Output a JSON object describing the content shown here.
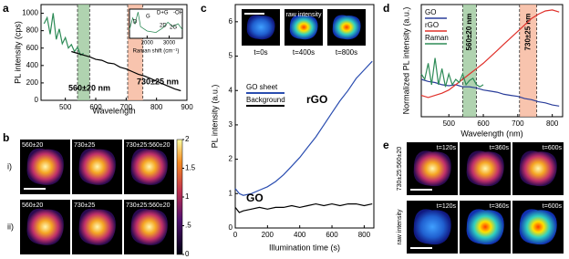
{
  "panel_labels": [
    "a",
    "b",
    "c",
    "d",
    "e"
  ],
  "chart_data": [
    {
      "type": "line",
      "y_label": "PL intensity (cps)",
      "x_label": "Wavelength",
      "xlim": [
        420,
        900
      ],
      "ylim": [
        0,
        1100
      ],
      "xticks": [
        500,
        600,
        700,
        800,
        900
      ],
      "yticks": [
        0,
        200,
        400,
        600,
        800,
        1000
      ],
      "bands": [
        {
          "range": [
            540,
            580
          ],
          "color": "#9cc89c",
          "label": "560±20 nm",
          "label_color": "#2e9a3a"
        },
        {
          "range": [
            705,
            755
          ],
          "color": "#f6b59a",
          "label": "730±25 nm",
          "label_color": "#d9443a"
        }
      ],
      "series": [
        {
          "color": "#2e8b57",
          "x": [
            430,
            440,
            450,
            460,
            470,
            480,
            490,
            500,
            510,
            520,
            530,
            540,
            550,
            560
          ],
          "values": [
            880,
            950,
            760,
            1000,
            700,
            820,
            650,
            720,
            600,
            640,
            560,
            610,
            520,
            540
          ]
        },
        {
          "color": "#000000",
          "x": [
            520,
            540,
            560,
            580,
            600,
            620,
            640,
            660,
            680,
            700,
            720,
            740,
            760,
            780,
            800,
            820,
            840,
            860,
            880
          ],
          "values": [
            560,
            540,
            520,
            500,
            470,
            460,
            430,
            420,
            380,
            360,
            330,
            300,
            280,
            250,
            220,
            190,
            160,
            130,
            110
          ]
        }
      ]
    },
    {
      "type": "line",
      "x_label": "Raman shift (cm⁻¹)",
      "xlim": [
        1200,
        3600
      ],
      "ylim": [
        0,
        1
      ],
      "xticks": [
        2000,
        3000
      ],
      "peak_labels": [
        "D",
        "G",
        "D+G",
        "-OH",
        "2D",
        "2G"
      ],
      "series": [
        {
          "color": "#2e8b57",
          "x": [
            1200,
            1350,
            1450,
            1590,
            1700,
            2000,
            2400,
            2700,
            2940,
            3180,
            3400,
            3600
          ],
          "values": [
            0.3,
            0.7,
            0.5,
            0.9,
            0.4,
            0.25,
            0.2,
            0.35,
            0.55,
            0.4,
            0.5,
            0.3
          ]
        }
      ]
    },
    {
      "type": "line",
      "x_label": "Illumination time (s)",
      "y_label": "PL intensity (a.u.)",
      "xlim": [
        0,
        860
      ],
      "ylim": [
        0,
        6.5
      ],
      "xticks": [
        0,
        200,
        400,
        600,
        800
      ],
      "yticks": [
        0,
        1,
        2,
        3,
        4,
        5,
        6
      ],
      "annotations": [
        {
          "text": "GO",
          "color": "#2e9a2e"
        },
        {
          "text": "rGO",
          "color": "#f0a000"
        }
      ],
      "images": {
        "label": "raw intensity",
        "times": [
          "t=0s",
          "t=400s",
          "t=800s"
        ]
      },
      "series": [
        {
          "name": "GO sheet",
          "color": "#2a4db0",
          "x": [
            0,
            25,
            50,
            100,
            150,
            200,
            250,
            300,
            350,
            400,
            450,
            500,
            550,
            600,
            650,
            700,
            750,
            800,
            850
          ],
          "values": [
            1.15,
            1.0,
            0.95,
            1.0,
            1.1,
            1.2,
            1.35,
            1.55,
            1.8,
            2.05,
            2.35,
            2.65,
            3.0,
            3.35,
            3.7,
            4.0,
            4.35,
            4.6,
            4.85
          ]
        },
        {
          "name": "Background",
          "color": "#000000",
          "x": [
            0,
            25,
            50,
            100,
            150,
            200,
            250,
            300,
            350,
            400,
            450,
            500,
            550,
            600,
            650,
            700,
            750,
            800,
            850
          ],
          "values": [
            0.6,
            0.45,
            0.5,
            0.55,
            0.6,
            0.55,
            0.6,
            0.6,
            0.65,
            0.6,
            0.65,
            0.7,
            0.65,
            0.7,
            0.65,
            0.7,
            0.7,
            0.65,
            0.7
          ]
        }
      ]
    },
    {
      "type": "line",
      "x_label": "Wavelength (nm)",
      "y_label": "Normalized PL intensity (a.u.)",
      "xlim": [
        420,
        830
      ],
      "ylim": [
        0,
        1.05
      ],
      "xticks": [
        500,
        600,
        700,
        800
      ],
      "bands": [
        {
          "range": [
            540,
            580
          ],
          "color": "#9cc89c",
          "label": "560±20 nm",
          "label_color": "#2e9a3a"
        },
        {
          "range": [
            705,
            755
          ],
          "color": "#f6b59a",
          "label": "730±25 nm",
          "label_color": "#d9443a"
        }
      ],
      "series": [
        {
          "name": "GO",
          "color": "#2a3d9a",
          "x": [
            420,
            440,
            460,
            480,
            500,
            520,
            540,
            560,
            580,
            600,
            620,
            640,
            660,
            680,
            700,
            720,
            740,
            760,
            780,
            800,
            820
          ],
          "values": [
            0.35,
            0.33,
            0.32,
            0.3,
            0.29,
            0.3,
            0.28,
            0.28,
            0.27,
            0.25,
            0.24,
            0.23,
            0.21,
            0.2,
            0.19,
            0.17,
            0.16,
            0.14,
            0.13,
            0.11,
            0.1
          ]
        },
        {
          "name": "rGO",
          "color": "#e0302a",
          "x": [
            420,
            440,
            460,
            480,
            500,
            520,
            540,
            560,
            580,
            600,
            620,
            640,
            660,
            680,
            700,
            720,
            740,
            760,
            780,
            800,
            820
          ],
          "values": [
            0.2,
            0.18,
            0.2,
            0.22,
            0.25,
            0.3,
            0.35,
            0.4,
            0.45,
            0.5,
            0.56,
            0.62,
            0.68,
            0.74,
            0.8,
            0.86,
            0.92,
            0.96,
            0.99,
            1.0,
            0.98
          ]
        },
        {
          "name": "Raman",
          "color": "#2e8b57",
          "x": [
            420,
            430,
            440,
            450,
            460,
            470,
            480,
            490,
            500,
            510,
            520,
            530,
            540,
            550,
            560,
            570,
            580,
            590,
            600
          ],
          "values": [
            0.4,
            0.35,
            0.5,
            0.3,
            0.55,
            0.3,
            0.45,
            0.28,
            0.4,
            0.3,
            0.35,
            0.32,
            0.4,
            0.3,
            0.34,
            0.36,
            0.3,
            0.28,
            0.3
          ]
        }
      ]
    }
  ],
  "image_panels": {
    "b": {
      "columns": [
        "560±20",
        "730±25",
        "730±25:560±20"
      ],
      "rows": [
        "i)",
        "ii)"
      ],
      "colorbar_lim": [
        0,
        2
      ],
      "colorbar_ticks": [
        0,
        {
          "value": 0.5,
          "label": ".5"
        },
        1,
        1.5,
        2
      ]
    },
    "e": {
      "rows": [
        "730±25:560±20",
        "raw intensity"
      ],
      "times": [
        "t=120s",
        "t=360s",
        "t=600s"
      ]
    }
  }
}
